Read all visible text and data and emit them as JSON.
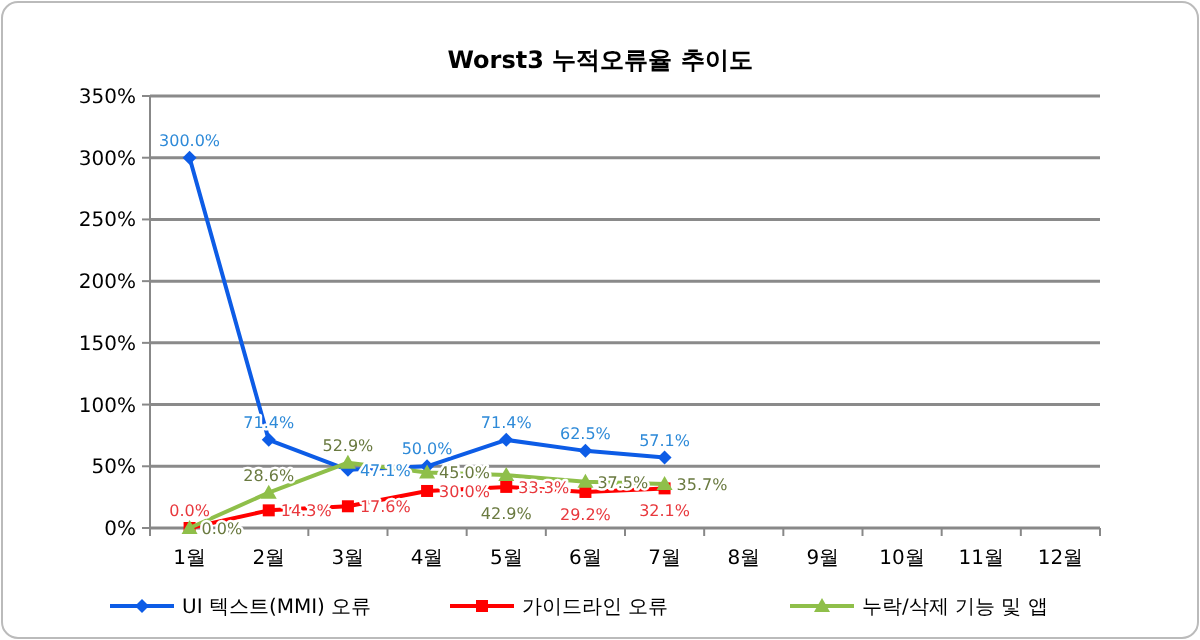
{
  "chart_data": {
    "type": "line",
    "title": "Worst3 누적오류율 추이도",
    "categories": [
      "1월",
      "2월",
      "3월",
      "4월",
      "5월",
      "6월",
      "7월",
      "8월",
      "9월",
      "10월",
      "11월",
      "12월"
    ],
    "series": [
      {
        "name": "UI 텍스트(MMI) 오류",
        "color": "#0d5ce6",
        "marker": "diamond",
        "values": [
          300,
          71.4,
          47.1,
          50.0,
          71.4,
          62.5,
          57.1,
          null,
          null,
          null,
          null,
          null
        ],
        "value_labels": [
          "300.0%",
          "71.4%",
          "47.1%",
          "50.0%",
          "71.4%",
          "62.5%",
          "57.1%",
          null,
          null,
          null,
          null,
          null
        ]
      },
      {
        "name": "가이드라인 오류",
        "color": "#ff0000",
        "marker": "square",
        "values": [
          0,
          14.3,
          17.6,
          30.0,
          33.3,
          29.2,
          32.1,
          null,
          null,
          null,
          null,
          null
        ],
        "value_labels": [
          "0.0%",
          "14.3%",
          "17.6%",
          "30.0%",
          "33.3%",
          "29.2%",
          "32.1%",
          null,
          null,
          null,
          null,
          null
        ]
      },
      {
        "name": "누락/삭제 기능 및 앱",
        "color": "#8fbf4a",
        "marker": "triangle",
        "values": [
          0,
          28.6,
          52.9,
          45.0,
          42.9,
          37.5,
          35.7,
          null,
          null,
          null,
          null,
          null
        ],
        "value_labels": [
          "0.0%",
          "28.6%",
          "52.9%",
          "45.0%",
          "42.9%",
          "37.5%",
          "35.7%",
          null,
          null,
          null,
          null,
          null
        ]
      }
    ],
    "ylim": [
      0,
      350
    ],
    "yticks": [
      {
        "value": 0,
        "label": "0%"
      },
      {
        "value": 50,
        "label": "50%"
      },
      {
        "value": 100,
        "label": "100%"
      },
      {
        "value": 150,
        "label": "150%"
      },
      {
        "value": 200,
        "label": "200%"
      },
      {
        "value": 250,
        "label": "250%"
      },
      {
        "value": 300,
        "label": "300%"
      },
      {
        "value": 350,
        "label": "350%"
      }
    ],
    "grid": "y",
    "legend": "bottom",
    "line_style": "solid"
  }
}
